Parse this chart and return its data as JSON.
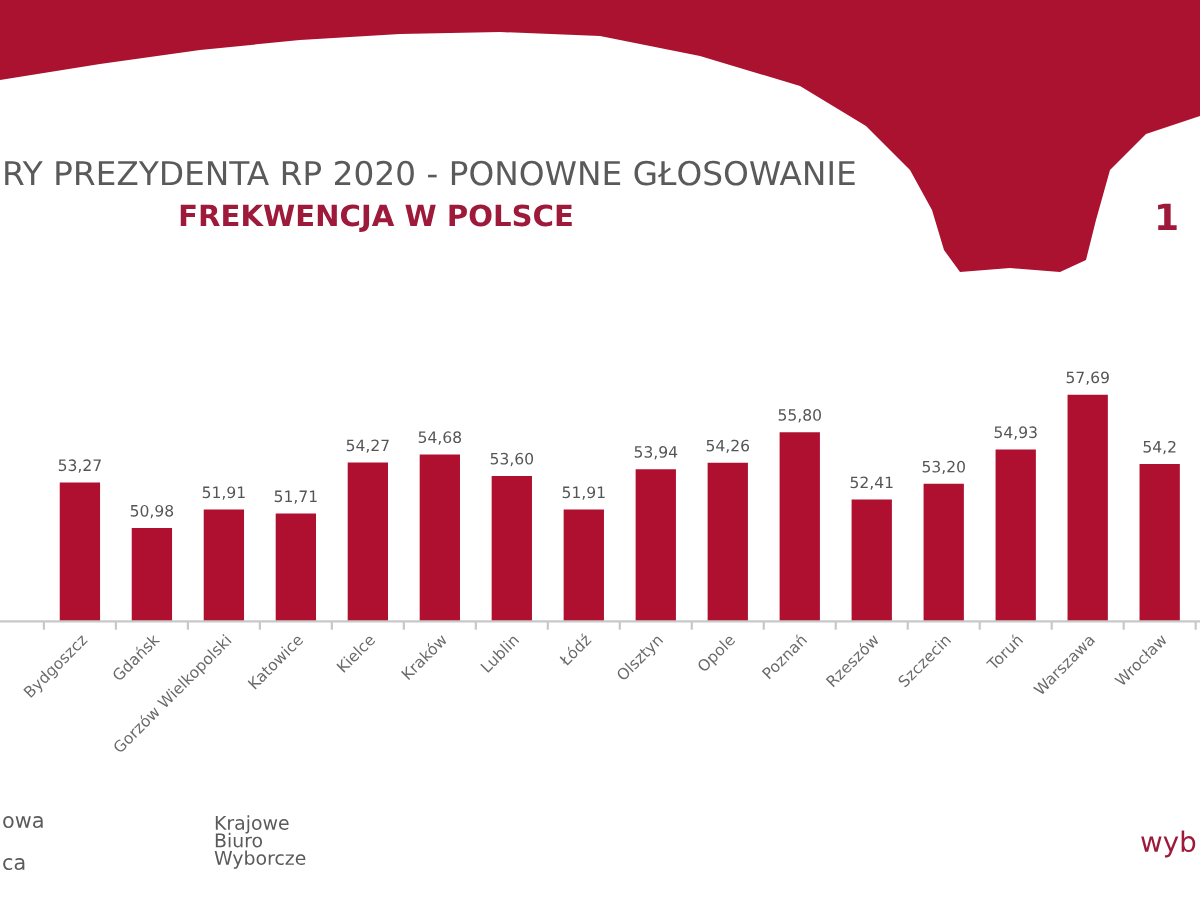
{
  "chart_data": {
    "type": "bar",
    "title": "RY PREZYDENTA RP 2020 - PONOWNE GŁOSOWANIE",
    "subtitle": "FREKWENCJA W POLSCE",
    "categories": [
      "Bydgoszcz",
      "Gdańsk",
      "Gorzów Wielkopolski",
      "Katowice",
      "Kielce",
      "Kraków",
      "Lublin",
      "Łódź",
      "Olsztyn",
      "Opole",
      "Poznań",
      "Rzeszów",
      "Szczecin",
      "Toruń",
      "Warszawa",
      "Wrocław"
    ],
    "values": [
      53.27,
      50.98,
      51.91,
      51.71,
      54.27,
      54.68,
      53.6,
      51.91,
      53.94,
      54.26,
      55.8,
      52.41,
      53.2,
      54.93,
      57.69,
      54.2
    ],
    "value_labels": [
      "53,27",
      "50,98",
      "51,91",
      "51,71",
      "54,27",
      "54,68",
      "53,60",
      "51,91",
      "53,94",
      "54,26",
      "55,80",
      "52,41",
      "53,20",
      "54,93",
      "57,69",
      "54,2"
    ],
    "color": "#b01030",
    "tick_labels": "x",
    "annotations": [
      "1",
      "owa",
      "ca",
      "Krajowe\nBiuro\nWyborcze",
      "wyb"
    ]
  }
}
